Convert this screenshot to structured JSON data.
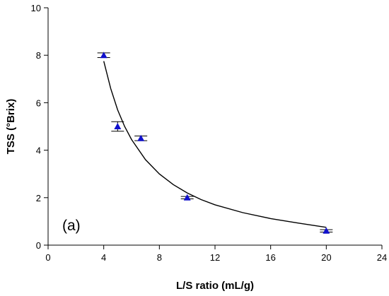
{
  "chart_data": {
    "type": "scatter",
    "xlabel": "L/S ratio (mL/g)",
    "ylabel": "TSS (°Brix)",
    "annotation": "(a)",
    "xlim": [
      0,
      24
    ],
    "ylim": [
      0,
      10
    ],
    "xticks": [
      0,
      4,
      8,
      12,
      16,
      20,
      24
    ],
    "yticks": [
      0,
      2,
      4,
      6,
      8,
      10
    ],
    "grid": false,
    "legend": "none",
    "marker": "triangle",
    "marker_color": "#1010cc",
    "series": [
      {
        "x": [
          4,
          5,
          6.67,
          10,
          20
        ],
        "y": [
          8.0,
          5.0,
          4.5,
          2.0,
          0.6
        ],
        "error": [
          0.1,
          0.2,
          0.1,
          0.05,
          0.05
        ]
      }
    ],
    "fit_curve": {
      "x": [
        4,
        4.5,
        5,
        5.5,
        6,
        7,
        8,
        9,
        10,
        11,
        12,
        14,
        16,
        18,
        20
      ],
      "y": [
        7.75,
        6.6,
        5.7,
        5.0,
        4.45,
        3.6,
        3.0,
        2.55,
        2.2,
        1.92,
        1.7,
        1.37,
        1.12,
        0.93,
        0.75
      ]
    }
  }
}
